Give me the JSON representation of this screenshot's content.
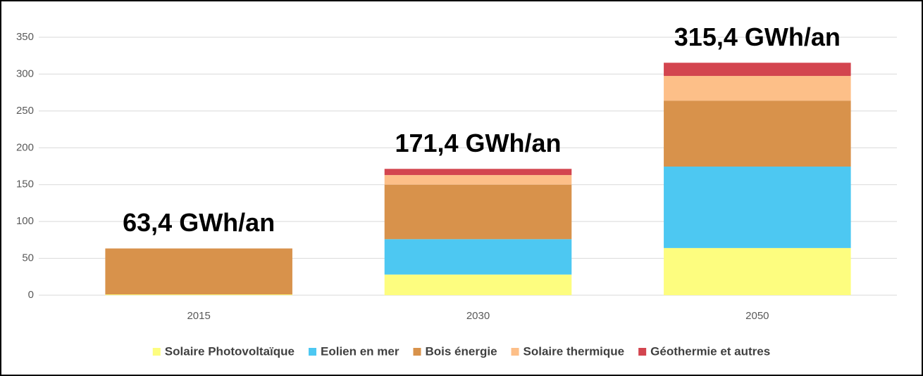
{
  "chart_data": {
    "type": "stacked_bar",
    "categories": [
      "2015",
      "2030",
      "2050"
    ],
    "series": [
      {
        "name": "Solaire Photovoltaïque",
        "color": "#fdfd7f",
        "values": [
          1,
          28,
          64
        ]
      },
      {
        "name": "Eolien en mer",
        "color": "#4dc8f2",
        "values": [
          0,
          48,
          110.5
        ]
      },
      {
        "name": "Bois énergie",
        "color": "#d8924b",
        "values": [
          62.4,
          74,
          89.5
        ]
      },
      {
        "name": "Solaire thermique",
        "color": "#fdbf88",
        "values": [
          0,
          13,
          33.5
        ]
      },
      {
        "name": "Géothermie et autres",
        "color": "#d3454f",
        "values": [
          0,
          8.4,
          17.9
        ]
      }
    ],
    "annotations": [
      "63,4 GWh/an",
      "171,4 GWh/an",
      "315,4 GWh/an"
    ],
    "ylim": [
      0,
      350
    ],
    "yticks": [
      0,
      50,
      100,
      150,
      200,
      250,
      300,
      350
    ],
    "grid": true,
    "legend": "bottom"
  }
}
